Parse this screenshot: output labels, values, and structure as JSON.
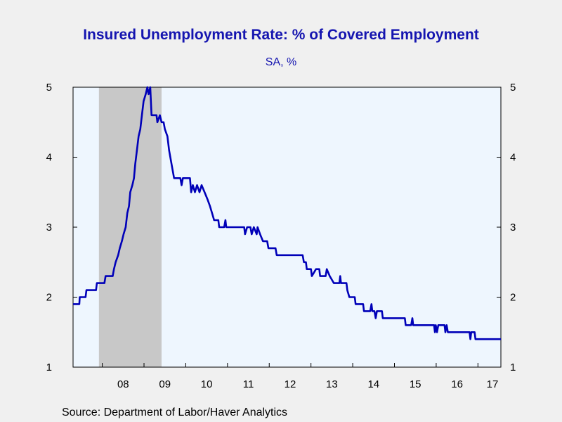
{
  "chart_data": {
    "type": "line",
    "title": "Insured Unemployment Rate: % of Covered Employment",
    "subtitle": "SA, %",
    "source": "Source:  Department of Labor/Haver Analytics",
    "xlabel": "",
    "ylabel": "",
    "xlim": [
      2007.3,
      2017.55
    ],
    "ylim": [
      1,
      5
    ],
    "y_ticks": [
      1,
      2,
      3,
      4,
      5
    ],
    "x_tick_labels": [
      {
        "year": 2008,
        "label": "08"
      },
      {
        "year": 2009,
        "label": "09"
      },
      {
        "year": 2010,
        "label": "10"
      },
      {
        "year": 2011,
        "label": "11"
      },
      {
        "year": 2012,
        "label": "12"
      },
      {
        "year": 2013,
        "label": "13"
      },
      {
        "year": 2014,
        "label": "14"
      },
      {
        "year": 2015,
        "label": "15"
      },
      {
        "year": 2016,
        "label": "16"
      },
      {
        "year": 2017,
        "label": "17"
      }
    ],
    "recession_shading": [
      {
        "start": 2007.92,
        "end": 2009.42
      }
    ],
    "colors": {
      "line": "#0000b8",
      "plot_background": "#eef6fe",
      "recession": "#c8c8c8",
      "title": "#1515b0"
    },
    "series": [
      {
        "values": [
          [
            2007.3,
            1.9
          ],
          [
            2007.45,
            1.9
          ],
          [
            2007.46,
            2.0
          ],
          [
            2007.6,
            2.0
          ],
          [
            2007.62,
            2.1
          ],
          [
            2007.85,
            2.1
          ],
          [
            2007.87,
            2.2
          ],
          [
            2008.05,
            2.2
          ],
          [
            2008.08,
            2.3
          ],
          [
            2008.25,
            2.3
          ],
          [
            2008.28,
            2.4
          ],
          [
            2008.32,
            2.5
          ],
          [
            2008.38,
            2.6
          ],
          [
            2008.42,
            2.7
          ],
          [
            2008.47,
            2.8
          ],
          [
            2008.51,
            2.9
          ],
          [
            2008.56,
            3.0
          ],
          [
            2008.6,
            3.2
          ],
          [
            2008.64,
            3.3
          ],
          [
            2008.67,
            3.5
          ],
          [
            2008.72,
            3.6
          ],
          [
            2008.76,
            3.7
          ],
          [
            2008.79,
            3.9
          ],
          [
            2008.83,
            4.1
          ],
          [
            2008.87,
            4.3
          ],
          [
            2008.91,
            4.4
          ],
          [
            2008.95,
            4.6
          ],
          [
            2008.99,
            4.8
          ],
          [
            2009.04,
            4.9
          ],
          [
            2009.08,
            5.0
          ],
          [
            2009.11,
            4.9
          ],
          [
            2009.15,
            5.0
          ],
          [
            2009.18,
            4.6
          ],
          [
            2009.3,
            4.6
          ],
          [
            2009.32,
            4.5
          ],
          [
            2009.38,
            4.6
          ],
          [
            2009.42,
            4.5
          ],
          [
            2009.47,
            4.5
          ],
          [
            2009.5,
            4.4
          ],
          [
            2009.56,
            4.3
          ],
          [
            2009.6,
            4.1
          ],
          [
            2009.66,
            3.9
          ],
          [
            2009.72,
            3.7
          ],
          [
            2009.87,
            3.7
          ],
          [
            2009.9,
            3.6
          ],
          [
            2009.93,
            3.7
          ],
          [
            2010.1,
            3.7
          ],
          [
            2010.13,
            3.5
          ],
          [
            2010.17,
            3.6
          ],
          [
            2010.22,
            3.5
          ],
          [
            2010.27,
            3.6
          ],
          [
            2010.33,
            3.5
          ],
          [
            2010.38,
            3.6
          ],
          [
            2010.45,
            3.5
          ],
          [
            2010.52,
            3.4
          ],
          [
            2010.58,
            3.3
          ],
          [
            2010.63,
            3.2
          ],
          [
            2010.68,
            3.1
          ],
          [
            2010.78,
            3.1
          ],
          [
            2010.8,
            3.0
          ],
          [
            2010.92,
            3.0
          ],
          [
            2010.95,
            3.1
          ],
          [
            2010.97,
            3.0
          ],
          [
            2011.4,
            3.0
          ],
          [
            2011.42,
            2.9
          ],
          [
            2011.47,
            3.0
          ],
          [
            2011.55,
            3.0
          ],
          [
            2011.58,
            2.9
          ],
          [
            2011.63,
            3.0
          ],
          [
            2011.7,
            2.9
          ],
          [
            2011.72,
            3.0
          ],
          [
            2011.78,
            2.9
          ],
          [
            2011.85,
            2.8
          ],
          [
            2011.95,
            2.8
          ],
          [
            2011.98,
            2.7
          ],
          [
            2012.15,
            2.7
          ],
          [
            2012.18,
            2.6
          ],
          [
            2012.8,
            2.6
          ],
          [
            2012.83,
            2.5
          ],
          [
            2012.88,
            2.5
          ],
          [
            2012.9,
            2.4
          ],
          [
            2013.0,
            2.4
          ],
          [
            2013.02,
            2.3
          ],
          [
            2013.12,
            2.4
          ],
          [
            2013.2,
            2.4
          ],
          [
            2013.22,
            2.3
          ],
          [
            2013.35,
            2.3
          ],
          [
            2013.38,
            2.4
          ],
          [
            2013.45,
            2.3
          ],
          [
            2013.55,
            2.2
          ],
          [
            2013.68,
            2.2
          ],
          [
            2013.7,
            2.3
          ],
          [
            2013.72,
            2.2
          ],
          [
            2013.85,
            2.2
          ],
          [
            2013.87,
            2.1
          ],
          [
            2013.92,
            2.0
          ],
          [
            2014.05,
            2.0
          ],
          [
            2014.07,
            1.9
          ],
          [
            2014.25,
            1.9
          ],
          [
            2014.27,
            1.8
          ],
          [
            2014.42,
            1.8
          ],
          [
            2014.45,
            1.9
          ],
          [
            2014.47,
            1.8
          ],
          [
            2014.52,
            1.8
          ],
          [
            2014.55,
            1.7
          ],
          [
            2014.58,
            1.8
          ],
          [
            2014.7,
            1.8
          ],
          [
            2014.72,
            1.7
          ],
          [
            2015.25,
            1.7
          ],
          [
            2015.27,
            1.6
          ],
          [
            2015.4,
            1.6
          ],
          [
            2015.43,
            1.7
          ],
          [
            2015.45,
            1.6
          ],
          [
            2015.95,
            1.6
          ],
          [
            2015.97,
            1.5
          ],
          [
            2015.99,
            1.6
          ],
          [
            2016.02,
            1.5
          ],
          [
            2016.05,
            1.6
          ],
          [
            2016.2,
            1.6
          ],
          [
            2016.22,
            1.5
          ],
          [
            2016.25,
            1.6
          ],
          [
            2016.28,
            1.5
          ],
          [
            2016.8,
            1.5
          ],
          [
            2016.82,
            1.4
          ],
          [
            2016.84,
            1.5
          ],
          [
            2016.92,
            1.5
          ],
          [
            2016.94,
            1.4
          ],
          [
            2017.55,
            1.4
          ]
        ]
      }
    ]
  }
}
